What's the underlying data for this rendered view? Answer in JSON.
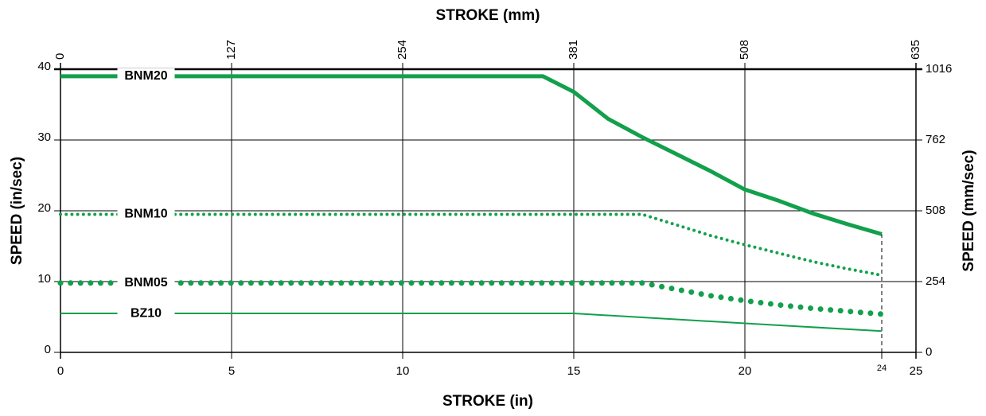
{
  "chart_data": {
    "type": "line",
    "xlabel": "STROKE (in)",
    "x2label": "STROKE (mm)",
    "ylabel": "SPEED (in/sec)",
    "y2label": "SPEED (mm/sec)",
    "xlim": [
      0,
      25
    ],
    "xticks": [
      0,
      5,
      10,
      15,
      20,
      24,
      25
    ],
    "x2lim": [
      0,
      635
    ],
    "x2ticks": [
      0,
      127,
      254,
      381,
      508,
      635
    ],
    "ylim": [
      0,
      40
    ],
    "yticks": [
      0,
      10,
      20,
      30,
      40
    ],
    "y2lim": [
      0,
      1016
    ],
    "y2ticks": [
      0,
      254,
      508,
      762,
      1016
    ],
    "grid": true,
    "series": [
      {
        "name": "BNM20",
        "color": "#12a04c",
        "linestyle": "solid",
        "linewidth": 5,
        "x": [
          0,
          14.1,
          15,
          16,
          17,
          18,
          19,
          20,
          21,
          22,
          23,
          24
        ],
        "values": [
          39,
          39,
          36.8,
          33,
          30.4,
          28,
          25.6,
          23,
          21.4,
          19.6,
          18.1,
          16.7
        ]
      },
      {
        "name": "BNM10",
        "color": "#12a04c",
        "linestyle": "dotted",
        "linewidth": 4,
        "x": [
          0,
          17,
          18,
          19,
          20,
          21,
          22,
          23,
          24
        ],
        "values": [
          19.5,
          19.5,
          18,
          16.5,
          15.2,
          14,
          12.8,
          11.8,
          10.9
        ]
      },
      {
        "name": "BNM05",
        "color": "#12a04c",
        "linestyle": "dotted",
        "linewidth": 7,
        "x": [
          0,
          17,
          18,
          19,
          20,
          21,
          22,
          23,
          24
        ],
        "values": [
          9.8,
          9.8,
          8.9,
          8,
          7.3,
          6.7,
          6.2,
          5.8,
          5.4
        ]
      },
      {
        "name": "BZ10",
        "color": "#12a04c",
        "linestyle": "solid",
        "linewidth": 2,
        "x": [
          0,
          15,
          20,
          24
        ],
        "values": [
          5.5,
          5.5,
          4.1,
          3.0
        ]
      }
    ]
  }
}
